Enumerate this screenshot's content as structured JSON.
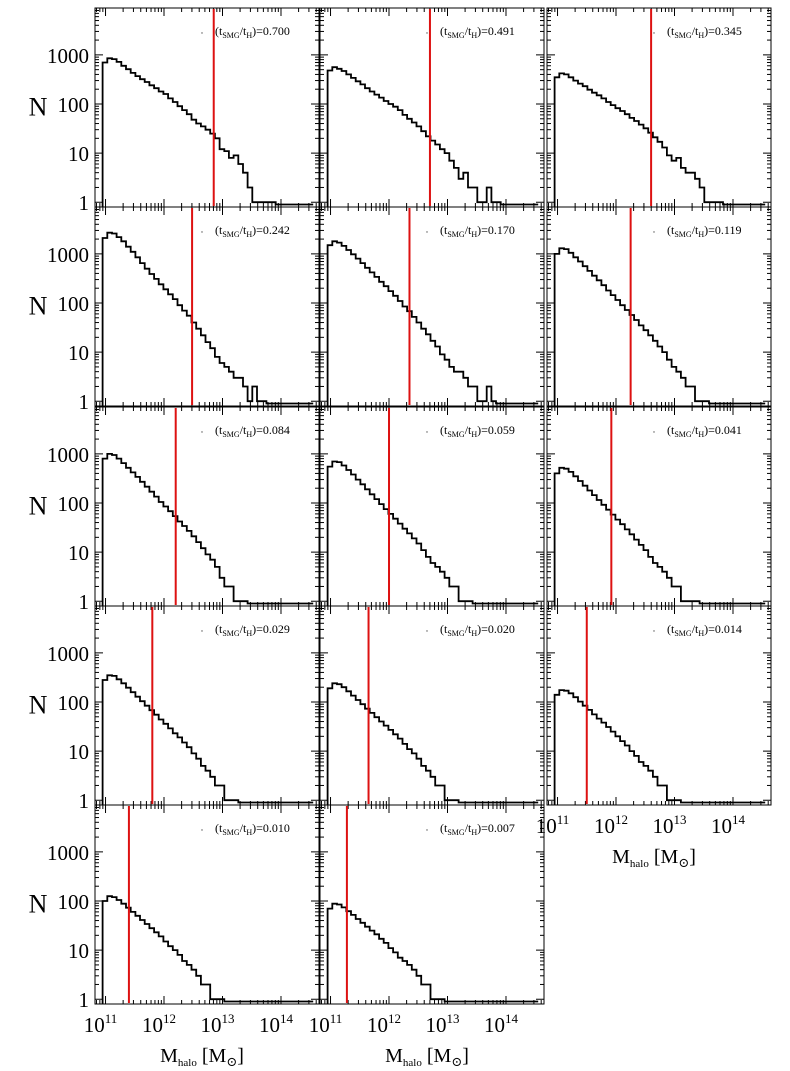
{
  "figure": {
    "ylabel": "N",
    "xlabel_prefix": "M",
    "xlabel_sub": "halo",
    "xlabel_suffix": "[M",
    "xlabel_sun": "⊙",
    "xlabel_close": "]",
    "colors": {
      "histogram": "#000000",
      "marker": "#dd1111",
      "axes": "#000000"
    },
    "y_ticks": [
      {
        "value": 1,
        "label": "1"
      },
      {
        "value": 10,
        "label": "10"
      },
      {
        "value": 100,
        "label": "100"
      },
      {
        "value": 1000,
        "label": "1000"
      }
    ],
    "x_ticks": [
      {
        "exp": 11,
        "base": "10",
        "sup": "11"
      },
      {
        "exp": 12,
        "base": "10",
        "sup": "12"
      },
      {
        "exp": 13,
        "base": "10",
        "sup": "13"
      },
      {
        "exp": 14,
        "base": "10",
        "sup": "14"
      }
    ]
  },
  "chart_data": [
    {
      "type": "bar",
      "panel": 1,
      "title_ratio": "0.700",
      "x_scale": "log10 Mhalo",
      "y_scale": "log",
      "xlim": [
        10.82,
        14.65
      ],
      "ylim": [
        0.8,
        9000
      ],
      "marker_log_mass": 12.85,
      "bin_edges_start": 10.95,
      "bin_width": 0.08,
      "counts": [
        700,
        850,
        820,
        720,
        600,
        510,
        430,
        370,
        320,
        280,
        240,
        210,
        180,
        160,
        130,
        110,
        90,
        75,
        62,
        48,
        40,
        35,
        30,
        25,
        20,
        12,
        11,
        8,
        9,
        6,
        4,
        2,
        1,
        1,
        1,
        1,
        1,
        0.9,
        0.9,
        0.9,
        0.9,
        0.9,
        0.9,
        0.9,
        0.9
      ]
    },
    {
      "type": "bar",
      "panel": 2,
      "title_ratio": "0.491",
      "x_scale": "log10 Mhalo",
      "y_scale": "log",
      "xlim": [
        10.82,
        14.65
      ],
      "ylim": [
        0.8,
        9000
      ],
      "marker_log_mass": 12.7,
      "bin_edges_start": 10.95,
      "bin_width": 0.08,
      "counts": [
        480,
        560,
        520,
        470,
        400,
        340,
        290,
        250,
        210,
        180,
        155,
        135,
        115,
        100,
        88,
        75,
        60,
        50,
        42,
        35,
        28,
        22,
        18,
        15,
        12,
        10,
        7,
        5,
        3,
        4,
        2,
        2,
        1,
        1,
        2,
        1,
        1,
        0.9,
        0.9,
        0.9,
        0.9,
        0.9,
        0.9,
        0.9,
        0.9
      ]
    },
    {
      "type": "bar",
      "panel": 3,
      "title_ratio": "0.345",
      "x_scale": "log10 Mhalo",
      "y_scale": "log",
      "xlim": [
        10.82,
        14.65
      ],
      "ylim": [
        0.8,
        9000
      ],
      "marker_log_mass": 12.6,
      "bin_edges_start": 10.95,
      "bin_width": 0.08,
      "counts": [
        350,
        420,
        400,
        350,
        300,
        260,
        230,
        195,
        170,
        150,
        130,
        110,
        95,
        82,
        72,
        62,
        52,
        45,
        38,
        32,
        26,
        21,
        17,
        13,
        9,
        7,
        8,
        5,
        4,
        4,
        3,
        2,
        1,
        1,
        1,
        1,
        0.9,
        0.9,
        0.9,
        0.9,
        0.9,
        0.9,
        0.9,
        0.9,
        0.9
      ]
    },
    {
      "type": "bar",
      "panel": 4,
      "title_ratio": "0.242",
      "x_scale": "log10 Mhalo",
      "y_scale": "log",
      "xlim": [
        10.82,
        14.65
      ],
      "ylim": [
        0.8,
        9000
      ],
      "marker_log_mass": 12.48,
      "bin_edges_start": 10.95,
      "bin_width": 0.08,
      "counts": [
        2100,
        2700,
        2600,
        2200,
        1800,
        1400,
        1100,
        850,
        650,
        500,
        390,
        310,
        240,
        190,
        150,
        120,
        90,
        70,
        55,
        40,
        30,
        22,
        16,
        12,
        8,
        6,
        5,
        4,
        3,
        3,
        2,
        1,
        2,
        1,
        1,
        0.9,
        0.9,
        0.9,
        0.9,
        0.9,
        0.9,
        0.9,
        0.9,
        0.9,
        0.9
      ]
    },
    {
      "type": "bar",
      "panel": 5,
      "title_ratio": "0.170",
      "x_scale": "log10 Mhalo",
      "y_scale": "log",
      "xlim": [
        10.82,
        14.65
      ],
      "ylim": [
        0.8,
        9000
      ],
      "marker_log_mass": 12.35,
      "bin_edges_start": 10.95,
      "bin_width": 0.08,
      "counts": [
        1500,
        1800,
        1700,
        1450,
        1200,
        980,
        800,
        650,
        520,
        420,
        340,
        270,
        220,
        175,
        140,
        110,
        85,
        68,
        52,
        40,
        30,
        23,
        17,
        13,
        9,
        7,
        5,
        4,
        4,
        3,
        2,
        2,
        1,
        1,
        2,
        1,
        0.9,
        0.9,
        0.9,
        0.9,
        0.9,
        0.9,
        0.9,
        0.9,
        0.9
      ]
    },
    {
      "type": "bar",
      "panel": 6,
      "title_ratio": "0.119",
      "x_scale": "log10 Mhalo",
      "y_scale": "log",
      "xlim": [
        10.82,
        14.65
      ],
      "ylim": [
        0.8,
        9000
      ],
      "marker_log_mass": 12.25,
      "bin_edges_start": 10.95,
      "bin_width": 0.08,
      "counts": [
        1000,
        1300,
        1250,
        1050,
        850,
        700,
        560,
        450,
        360,
        290,
        230,
        180,
        145,
        115,
        90,
        72,
        57,
        45,
        35,
        28,
        22,
        17,
        13,
        10,
        7,
        5,
        4,
        3,
        2,
        2,
        1,
        1,
        1,
        0.9,
        0.9,
        0.9,
        0.9,
        0.9,
        0.9,
        0.9,
        0.9,
        0.9,
        0.9,
        0.9,
        0.9
      ]
    },
    {
      "type": "bar",
      "panel": 7,
      "title_ratio": "0.084",
      "x_scale": "log10 Mhalo",
      "y_scale": "log",
      "xlim": [
        10.82,
        14.65
      ],
      "ylim": [
        0.8,
        9000
      ],
      "marker_log_mass": 12.2,
      "bin_edges_start": 10.95,
      "bin_width": 0.08,
      "counts": [
        800,
        1000,
        950,
        800,
        650,
        520,
        420,
        340,
        270,
        215,
        170,
        135,
        105,
        85,
        68,
        54,
        42,
        34,
        27,
        21,
        16,
        12,
        9,
        7,
        5,
        3,
        2,
        2,
        1,
        1,
        1,
        0.9,
        0.9,
        0.9,
        0.9,
        0.9,
        0.9,
        0.9,
        0.9,
        0.9,
        0.9,
        0.9,
        0.9,
        0.9,
        0.9
      ]
    },
    {
      "type": "bar",
      "panel": 8,
      "title_ratio": "0.059",
      "x_scale": "log10 Mhalo",
      "y_scale": "log",
      "xlim": [
        10.82,
        14.65
      ],
      "ylim": [
        0.8,
        9000
      ],
      "marker_log_mass": 12.0,
      "bin_edges_start": 10.95,
      "bin_width": 0.08,
      "counts": [
        550,
        700,
        680,
        580,
        470,
        380,
        300,
        240,
        190,
        150,
        120,
        95,
        75,
        60,
        48,
        38,
        30,
        24,
        19,
        15,
        11,
        8,
        6,
        5,
        4,
        3,
        2,
        2,
        1,
        1,
        1,
        0.9,
        0.9,
        0.9,
        0.9,
        0.9,
        0.9,
        0.9,
        0.9,
        0.9,
        0.9,
        0.9,
        0.9,
        0.9,
        0.9
      ]
    },
    {
      "type": "bar",
      "panel": 9,
      "title_ratio": "0.041",
      "x_scale": "log10 Mhalo",
      "y_scale": "log",
      "xlim": [
        10.82,
        14.65
      ],
      "ylim": [
        0.8,
        9000
      ],
      "marker_log_mass": 11.92,
      "bin_edges_start": 10.95,
      "bin_width": 0.08,
      "counts": [
        400,
        520,
        500,
        430,
        350,
        280,
        225,
        180,
        145,
        115,
        92,
        73,
        58,
        46,
        37,
        29,
        23,
        18,
        14,
        11,
        8,
        6,
        5,
        4,
        3,
        2,
        2,
        1,
        1,
        1,
        1,
        0.9,
        0.9,
        0.9,
        0.9,
        0.9,
        0.9,
        0.9,
        0.9,
        0.9,
        0.9,
        0.9,
        0.9,
        0.9,
        0.9
      ]
    },
    {
      "type": "bar",
      "panel": 10,
      "title_ratio": "0.029",
      "x_scale": "log10 Mhalo",
      "y_scale": "log",
      "xlim": [
        10.82,
        14.65
      ],
      "ylim": [
        0.8,
        9000
      ],
      "marker_log_mass": 11.8,
      "bin_edges_start": 10.95,
      "bin_width": 0.08,
      "counts": [
        280,
        350,
        340,
        290,
        240,
        195,
        158,
        128,
        104,
        84,
        68,
        55,
        44,
        36,
        29,
        23,
        19,
        15,
        12,
        9,
        7,
        5,
        4,
        3,
        2,
        2,
        1,
        1,
        1,
        0.9,
        0.9,
        0.9,
        0.9,
        0.9,
        0.9,
        0.9,
        0.9,
        0.9,
        0.9,
        0.9,
        0.9,
        0.9,
        0.9,
        0.9,
        0.9
      ]
    },
    {
      "type": "bar",
      "panel": 11,
      "title_ratio": "0.020",
      "x_scale": "log10 Mhalo",
      "y_scale": "log",
      "xlim": [
        10.82,
        14.65
      ],
      "ylim": [
        0.8,
        9000
      ],
      "marker_log_mass": 11.65,
      "bin_edges_start": 10.95,
      "bin_width": 0.08,
      "counts": [
        190,
        240,
        230,
        200,
        165,
        135,
        110,
        90,
        73,
        60,
        49,
        40,
        33,
        27,
        22,
        18,
        14,
        11,
        9,
        7,
        5,
        4,
        3,
        2,
        2,
        1,
        1,
        1,
        0.9,
        0.9,
        0.9,
        0.9,
        0.9,
        0.9,
        0.9,
        0.9,
        0.9,
        0.9,
        0.9,
        0.9,
        0.9,
        0.9,
        0.9,
        0.9,
        0.9
      ]
    },
    {
      "type": "bar",
      "panel": 12,
      "title_ratio": "0.014",
      "x_scale": "log10 Mhalo",
      "y_scale": "log",
      "xlim": [
        10.82,
        14.65
      ],
      "ylim": [
        0.8,
        9000
      ],
      "marker_log_mass": 11.5,
      "bin_edges_start": 10.95,
      "bin_width": 0.08,
      "counts": [
        140,
        175,
        170,
        150,
        125,
        102,
        84,
        69,
        56,
        46,
        38,
        31,
        25,
        20,
        16,
        13,
        10,
        8,
        6,
        5,
        4,
        3,
        2,
        2,
        1,
        1,
        1,
        0.9,
        0.9,
        0.9,
        0.9,
        0.9,
        0.9,
        0.9,
        0.9,
        0.9,
        0.9,
        0.9,
        0.9,
        0.9,
        0.9,
        0.9,
        0.9,
        0.9,
        0.9
      ]
    },
    {
      "type": "bar",
      "panel": 13,
      "title_ratio": "0.010",
      "x_scale": "log10 Mhalo",
      "y_scale": "log",
      "xlim": [
        10.82,
        14.65
      ],
      "ylim": [
        0.8,
        9000
      ],
      "marker_log_mass": 11.4,
      "bin_edges_start": 10.95,
      "bin_width": 0.08,
      "counts": [
        100,
        125,
        120,
        105,
        88,
        73,
        60,
        50,
        41,
        34,
        28,
        23,
        19,
        15,
        12,
        10,
        8,
        6,
        5,
        4,
        3,
        2,
        2,
        1,
        1,
        1,
        0.9,
        0.9,
        0.9,
        0.9,
        0.9,
        0.9,
        0.9,
        0.9,
        0.9,
        0.9,
        0.9,
        0.9,
        0.9,
        0.9,
        0.9,
        0.9,
        0.9,
        0.9,
        0.9
      ]
    },
    {
      "type": "bar",
      "panel": 14,
      "title_ratio": "0.007",
      "x_scale": "log10 Mhalo",
      "y_scale": "log",
      "xlim": [
        10.82,
        14.65
      ],
      "ylim": [
        0.8,
        9000
      ],
      "marker_log_mass": 11.28,
      "bin_edges_start": 10.95,
      "bin_width": 0.08,
      "counts": [
        70,
        88,
        85,
        74,
        62,
        52,
        43,
        36,
        30,
        25,
        21,
        17,
        14,
        11,
        9,
        7,
        6,
        5,
        4,
        3,
        2,
        2,
        1,
        1,
        1,
        0.9,
        0.9,
        0.9,
        0.9,
        0.9,
        0.9,
        0.9,
        0.9,
        0.9,
        0.9,
        0.9,
        0.9,
        0.9,
        0.9,
        0.9,
        0.9,
        0.9,
        0.9,
        0.9,
        0.9
      ]
    }
  ]
}
